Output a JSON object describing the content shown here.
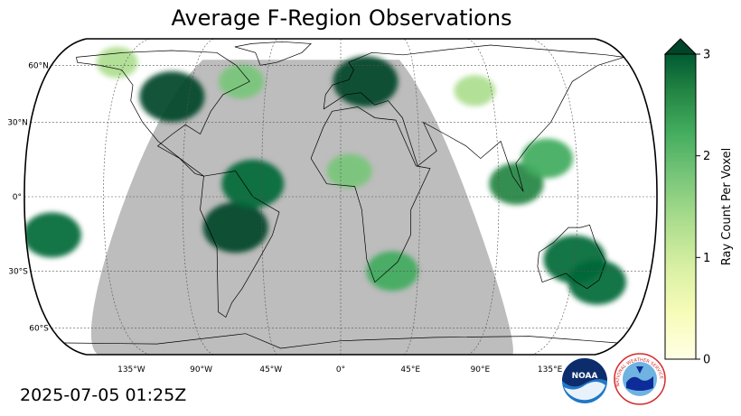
{
  "title": "Average F-Region Observations",
  "timestamp": "2025-07-05 01:25Z",
  "map": {
    "projection": "robinson",
    "land_color": "#bdbdbd",
    "ocean_color": "#ffffff",
    "gridline_style": "dashed",
    "lat_labels": [
      "60°N",
      "30°N",
      "0°",
      "30°S",
      "60°S"
    ],
    "lon_labels": [
      "135°W",
      "90°W",
      "45°W",
      "0°",
      "45°E",
      "90°E",
      "135°E"
    ]
  },
  "colorbar": {
    "label": "Ray Count Per Voxel",
    "ticks": [
      "0",
      "1",
      "2",
      "3"
    ],
    "range": [
      0,
      3
    ],
    "extend": "max",
    "colormap": "YlGn",
    "color_low": "#ffffe5",
    "color_high": "#004529"
  },
  "chart_data": {
    "type": "heatmap",
    "title": "Average F-Region Observations",
    "colorbar_label": "Ray Count Per Voxel",
    "value_range": [
      0,
      3
    ],
    "regions": [
      {
        "lon": -100,
        "lat": 42,
        "value": 3.0
      },
      {
        "lon": -60,
        "lat": -12,
        "value": 3.0
      },
      {
        "lon": -50,
        "lat": 5,
        "value": 2.8
      },
      {
        "lon": 15,
        "lat": 50,
        "value": 3.0
      },
      {
        "lon": 135,
        "lat": -25,
        "value": 2.8
      },
      {
        "lon": 150,
        "lat": -35,
        "value": 2.5
      },
      {
        "lon": -165,
        "lat": -15,
        "value": 2.5
      },
      {
        "lon": -140,
        "lat": 62,
        "value": 1.2
      },
      {
        "lon": -60,
        "lat": 50,
        "value": 1.5
      },
      {
        "lon": 100,
        "lat": 5,
        "value": 2.2
      },
      {
        "lon": 118,
        "lat": 15,
        "value": 2.0
      },
      {
        "lon": 80,
        "lat": 45,
        "value": 1.2
      },
      {
        "lon": 30,
        "lat": -30,
        "value": 2.0
      },
      {
        "lon": 5,
        "lat": 10,
        "value": 1.5
      }
    ]
  },
  "logos": {
    "noaa_text": "NOAA",
    "nws_text": "NATIONAL WEATHER SERVICE"
  }
}
